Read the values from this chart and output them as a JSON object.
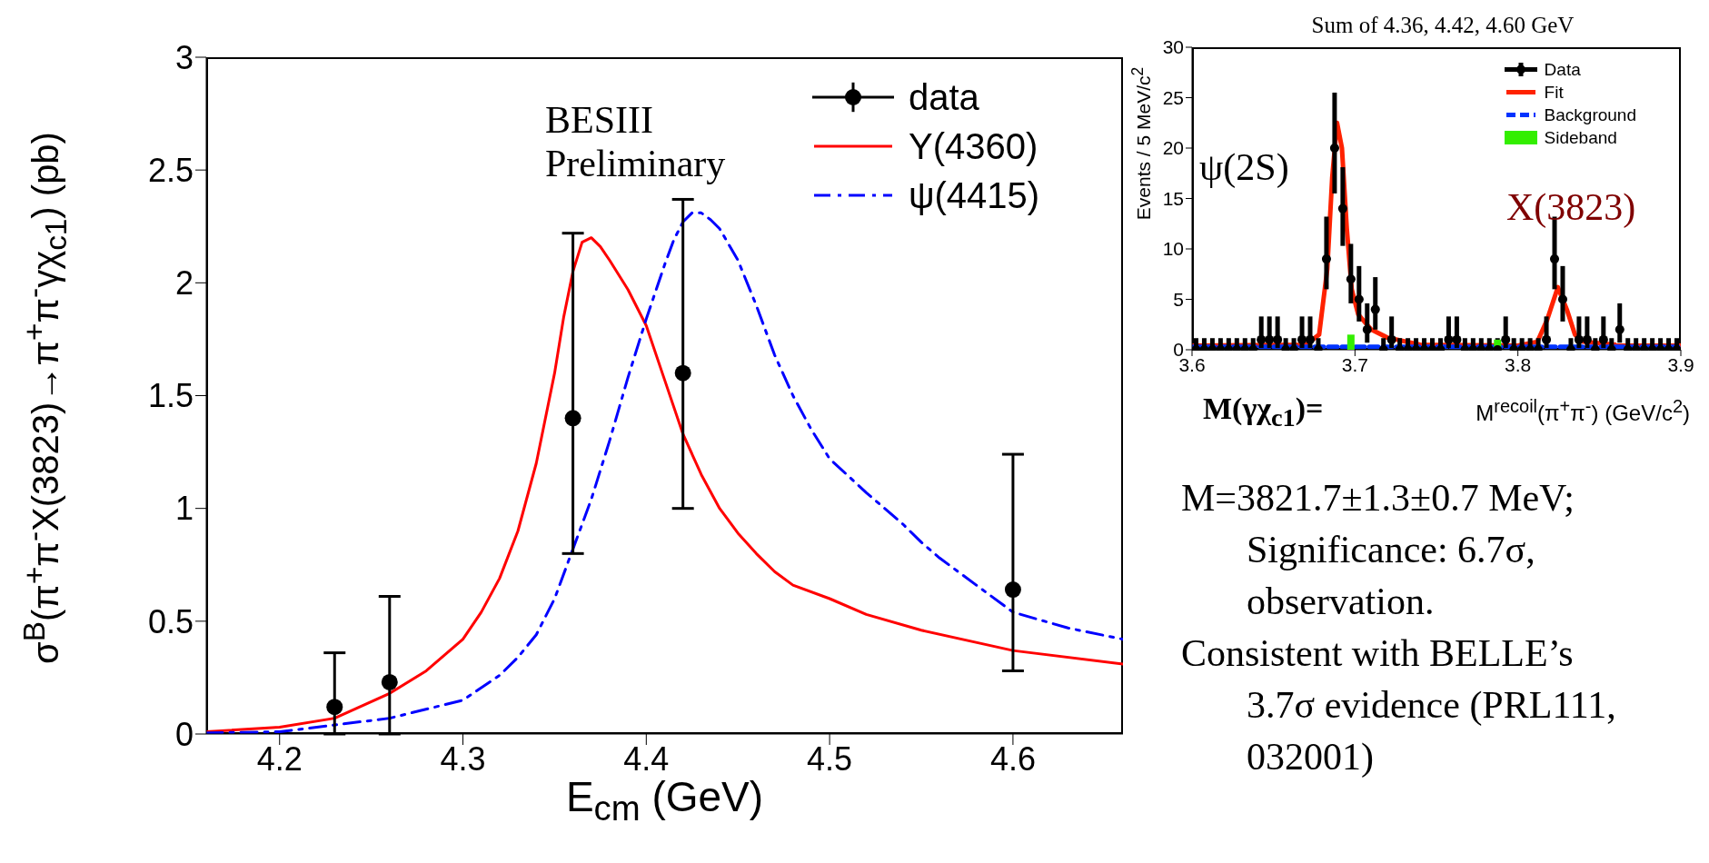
{
  "chart_data": [
    {
      "type": "line",
      "xlabel": "E$_{cm}$ (GeV)",
      "ylabel": "σ$^{B}$(π$^{+}$π$^{-}$X(3823)→π$^{+}$π$^{-}$γχ$_{c1}$) (pb)",
      "xlim": [
        4.16,
        4.66
      ],
      "xticks": [
        4.2,
        4.3,
        4.4,
        4.5,
        4.6
      ],
      "ylim": [
        0,
        3
      ],
      "yticks": [
        0,
        0.5,
        1,
        1.5,
        2,
        2.5,
        3
      ],
      "legend": "top right",
      "annotations": [
        "BESIII Preliminary"
      ],
      "series": [
        {
          "name": "data",
          "type": "scatter",
          "color": "#000000",
          "marker": "circle",
          "x": [
            4.23,
            4.26,
            4.36,
            4.42,
            4.6
          ],
          "values": [
            0.12,
            0.23,
            1.4,
            1.6,
            0.64
          ],
          "errors": [
            [
              0,
              0.36
            ],
            [
              0,
              0.61
            ],
            [
              0.8,
              2.22
            ],
            [
              1.0,
              2.37
            ],
            [
              0.28,
              1.24
            ]
          ]
        },
        {
          "name": "Y(4360)",
          "type": "line",
          "color": "#ff0000",
          "line_style": "solid",
          "marker": "none",
          "x": [
            4.16,
            4.2,
            4.23,
            4.26,
            4.28,
            4.3,
            4.31,
            4.32,
            4.33,
            4.34,
            4.35,
            4.355,
            4.36,
            4.365,
            4.37,
            4.375,
            4.38,
            4.39,
            4.4,
            4.41,
            4.42,
            4.43,
            4.44,
            4.45,
            4.46,
            4.47,
            4.48,
            4.5,
            4.52,
            4.55,
            4.6,
            4.66
          ],
          "values": [
            0.01,
            0.03,
            0.07,
            0.18,
            0.28,
            0.42,
            0.54,
            0.69,
            0.9,
            1.2,
            1.6,
            1.85,
            2.05,
            2.18,
            2.2,
            2.16,
            2.1,
            1.97,
            1.81,
            1.57,
            1.33,
            1.15,
            1.0,
            0.89,
            0.8,
            0.72,
            0.66,
            0.6,
            0.53,
            0.46,
            0.37,
            0.31
          ]
        },
        {
          "name": "ψ(4415)",
          "type": "line",
          "color": "#0000ff",
          "line_style": "dashed",
          "marker": "none",
          "x": [
            4.16,
            4.2,
            4.26,
            4.3,
            4.32,
            4.33,
            4.34,
            4.35,
            4.36,
            4.37,
            4.38,
            4.39,
            4.4,
            4.41,
            4.415,
            4.42,
            4.425,
            4.43,
            4.435,
            4.44,
            4.45,
            4.46,
            4.47,
            4.48,
            4.49,
            4.5,
            4.52,
            4.54,
            4.55,
            4.56,
            4.58,
            4.6,
            4.63,
            4.66
          ],
          "values": [
            0.005,
            0.01,
            0.07,
            0.15,
            0.26,
            0.34,
            0.44,
            0.6,
            0.82,
            1.04,
            1.3,
            1.58,
            1.84,
            2.08,
            2.19,
            2.27,
            2.31,
            2.31,
            2.28,
            2.24,
            2.1,
            1.9,
            1.68,
            1.5,
            1.35,
            1.22,
            1.07,
            0.93,
            0.85,
            0.78,
            0.66,
            0.54,
            0.47,
            0.42
          ]
        }
      ]
    },
    {
      "type": "scatter",
      "title": "Sum of 4.36, 4.42, 4.60 GeV",
      "xlabel": "M$^{recoil}$(π$^{+}$π$^{-}$) (GeV/c$^{2}$)",
      "ylabel": "Events / 5 MeV/c$^{2}$",
      "xlim": [
        3.6,
        3.9
      ],
      "xticks": [
        3.6,
        3.7,
        3.8,
        3.9
      ],
      "ylim": [
        0,
        30
      ],
      "yticks": [
        0,
        5,
        10,
        15,
        20,
        25,
        30
      ],
      "legend": "top right",
      "annotations": [
        "ψ(2S)",
        "X(3823)",
        "M(γχ$_{c1}$)="
      ],
      "series": [
        {
          "name": "Data",
          "type": "scatter",
          "color": "#000000",
          "marker": "circle",
          "x": [
            3.6025,
            3.6075,
            3.6125,
            3.6175,
            3.6225,
            3.6275,
            3.6325,
            3.6375,
            3.6425,
            3.6475,
            3.6525,
            3.6575,
            3.6625,
            3.6675,
            3.6725,
            3.6775,
            3.6825,
            3.6875,
            3.6925,
            3.6975,
            3.7025,
            3.7075,
            3.7125,
            3.7175,
            3.7225,
            3.7275,
            3.7325,
            3.7375,
            3.7425,
            3.7475,
            3.7525,
            3.7575,
            3.7625,
            3.7675,
            3.7725,
            3.7775,
            3.7825,
            3.7875,
            3.7925,
            3.7975,
            3.8025,
            3.8075,
            3.8125,
            3.8175,
            3.8225,
            3.8275,
            3.8325,
            3.8375,
            3.8425,
            3.8475,
            3.8525,
            3.8575,
            3.8625,
            3.8675,
            3.8725,
            3.8775,
            3.8825,
            3.8875,
            3.8925,
            3.8975
          ],
          "values": [
            0,
            0,
            0,
            0,
            0,
            0,
            0,
            0,
            1,
            1,
            1,
            0,
            0,
            1,
            1,
            0,
            9,
            20,
            14,
            7,
            5,
            2,
            4,
            0,
            1,
            0,
            0,
            0,
            0,
            0,
            0,
            1,
            1,
            0,
            0,
            0,
            0,
            0,
            1,
            0,
            0,
            0,
            0,
            1,
            9,
            5,
            0,
            1,
            1,
            0,
            1,
            0,
            2,
            0,
            0,
            0,
            0,
            0,
            0,
            0
          ],
          "errors": [
            [
              0,
              1.15
            ],
            [
              0,
              1.15
            ],
            [
              0,
              1.15
            ],
            [
              0,
              1.15
            ],
            [
              0,
              1.15
            ],
            [
              0,
              1.15
            ],
            [
              0,
              1.15
            ],
            [
              0,
              1.15
            ],
            [
              0.17,
              3.3
            ],
            [
              0.17,
              3.3
            ],
            [
              0.17,
              3.3
            ],
            [
              0,
              1.15
            ],
            [
              0,
              1.15
            ],
            [
              0.17,
              3.3
            ],
            [
              0.17,
              3.3
            ],
            [
              0,
              1.15
            ],
            [
              6,
              13.2
            ],
            [
              15.5,
              25.5
            ],
            [
              10.3,
              18.1
            ],
            [
              4.6,
              10.5
            ],
            [
              2.8,
              8.3
            ],
            [
              0.7,
              4.6
            ],
            [
              2,
              7.2
            ],
            [
              0,
              1.15
            ],
            [
              0.17,
              3.3
            ],
            [
              0,
              1.15
            ],
            [
              0,
              1.15
            ],
            [
              0,
              1.15
            ],
            [
              0,
              1.15
            ],
            [
              0,
              1.15
            ],
            [
              0,
              1.15
            ],
            [
              0.17,
              3.3
            ],
            [
              0.17,
              3.3
            ],
            [
              0,
              1.15
            ],
            [
              0,
              1.15
            ],
            [
              0,
              1.15
            ],
            [
              0,
              1.15
            ],
            [
              0,
              1.15
            ],
            [
              0.17,
              3.3
            ],
            [
              0,
              1.15
            ],
            [
              0,
              1.15
            ],
            [
              0,
              1.15
            ],
            [
              0,
              1.15
            ],
            [
              0.17,
              3.3
            ],
            [
              6,
              13.2
            ],
            [
              2.8,
              8.3
            ],
            [
              0,
              1.15
            ],
            [
              0.17,
              3.3
            ],
            [
              0.17,
              3.3
            ],
            [
              0,
              1.15
            ],
            [
              0.17,
              3.3
            ],
            [
              0,
              1.15
            ],
            [
              0.7,
              4.6
            ],
            [
              0,
              1.15
            ],
            [
              0,
              1.15
            ],
            [
              0,
              1.15
            ],
            [
              0,
              1.15
            ],
            [
              0,
              1.15
            ],
            [
              0,
              1.15
            ],
            [
              0,
              1.15
            ]
          ],
          "xerrors": [
            0.0025,
            0.0025,
            0.0025,
            0.0025,
            0.0025,
            0.0025,
            0.0025,
            0.0025,
            0.0025,
            0.0025,
            0.0025,
            0.0025,
            0.0025,
            0.0025,
            0.0025,
            0.0025,
            0.0025,
            0.0025,
            0.0025,
            0.0025,
            0.0025,
            0.0025,
            0.0025,
            0.0025,
            0.0025,
            0.0025,
            0.0025,
            0.0025,
            0.0025,
            0.0025,
            0.0025,
            0.0025,
            0.0025,
            0.0025,
            0.0025,
            0.0025,
            0.0025,
            0.0025,
            0.0025,
            0.0025,
            0.0025,
            0.0025,
            0.0025,
            0.0025,
            0.0025,
            0.0025,
            0.0025,
            0.0025,
            0.0025,
            0.0025,
            0.0025,
            0.0025,
            0.0025,
            0.0025,
            0.0025,
            0.0025,
            0.0025,
            0.0025,
            0.0025,
            0.0025
          ]
        },
        {
          "name": "Fit",
          "type": "line",
          "color": "#ff2200",
          "line_style": "solid",
          "marker": "none",
          "x": [
            3.6,
            3.67,
            3.678,
            3.683,
            3.686,
            3.689,
            3.692,
            3.695,
            3.698,
            3.702,
            3.71,
            3.72,
            3.74,
            3.8,
            3.812,
            3.818,
            3.8245,
            3.83,
            3.835,
            3.84,
            3.86,
            3.9
          ],
          "values": [
            0.4,
            0.5,
            1.5,
            8,
            17,
            22.5,
            20,
            12,
            6,
            3.5,
            2,
            1.2,
            0.5,
            0.4,
            0.8,
            3,
            6.2,
            4,
            1.5,
            0.8,
            0.5,
            0.4
          ]
        },
        {
          "name": "Background",
          "type": "line",
          "color": "#0033ff",
          "line_style": "dashed",
          "marker": "none",
          "x": [
            3.6,
            3.9
          ],
          "values": [
            0.3,
            0.3
          ]
        },
        {
          "name": "Sideband",
          "type": "bar",
          "color": "#33ee00",
          "x": [
            3.6975,
            3.7875
          ],
          "values": [
            1.5,
            1
          ]
        }
      ]
    },
    {
      "type": "other",
      "annotations": [
        "M=3821.7±1.3±0.7 MeV;",
        "Significance: 6.7σ,",
        "observation.",
        "Consistent with BELLE’s",
        "3.7σ evidence (PRL111,",
        "032001)"
      ]
    }
  ]
}
